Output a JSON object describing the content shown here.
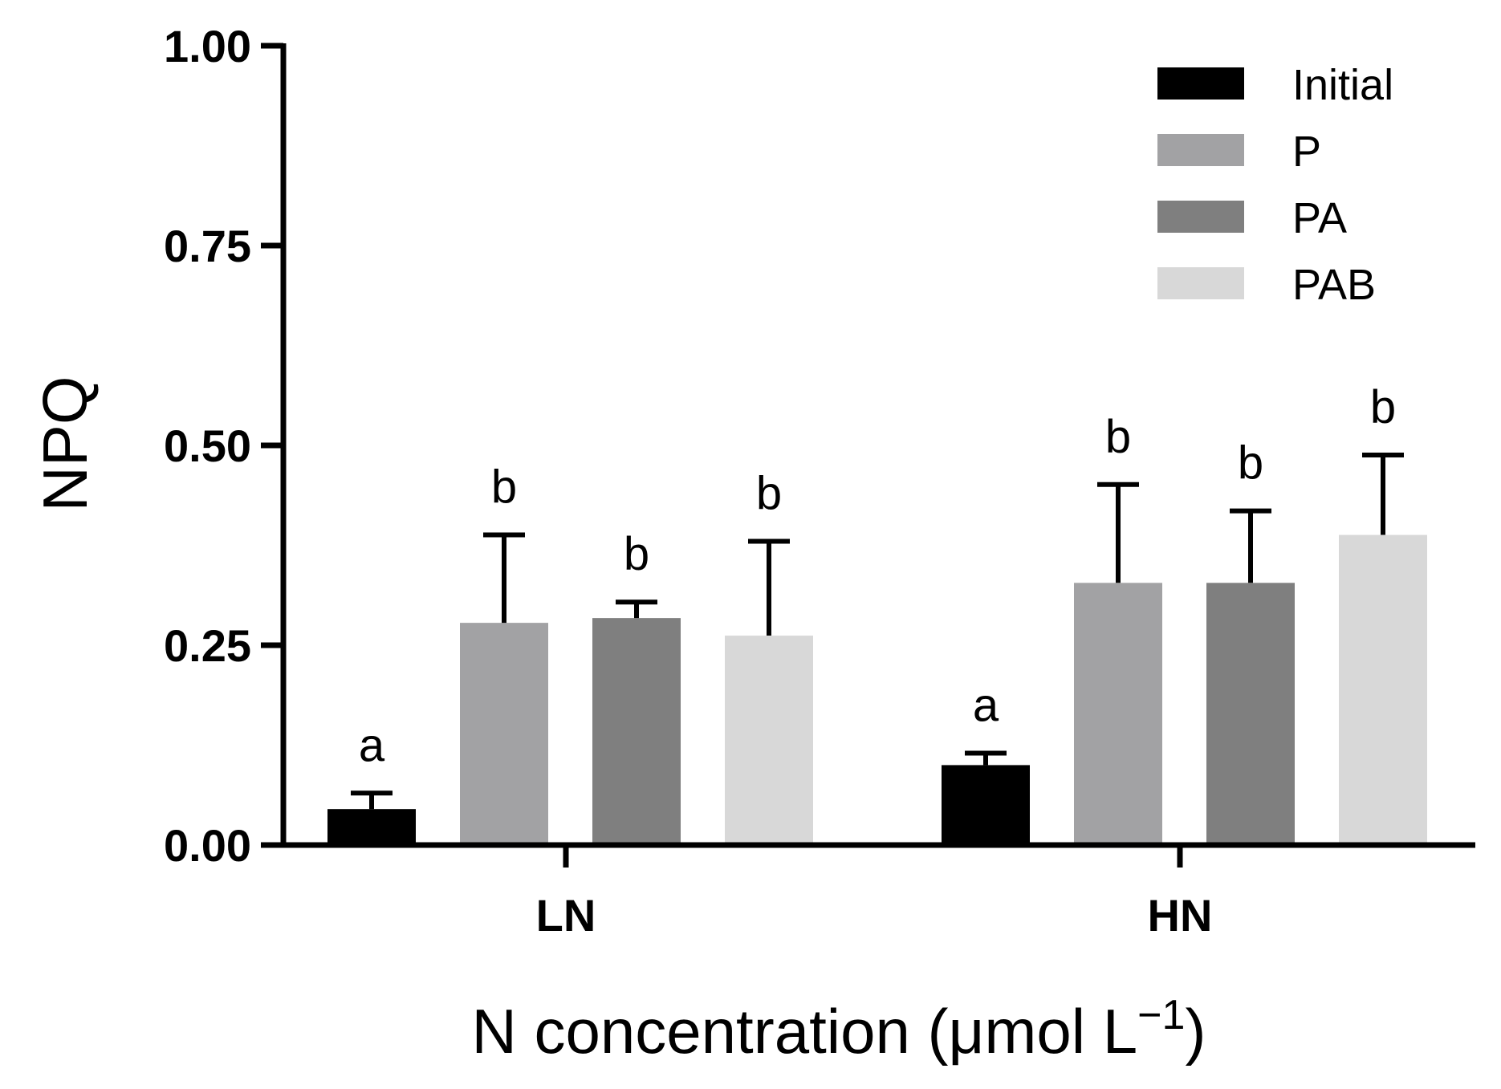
{
  "chart_data": {
    "type": "bar",
    "categories": [
      "LN",
      "HN"
    ],
    "series": [
      {
        "name": "Initial",
        "color": "#000000",
        "values": [
          0.045,
          0.1
        ],
        "errors": [
          0.02,
          0.015
        ],
        "significance": [
          "a",
          "a"
        ]
      },
      {
        "name": "P",
        "color": "#a2a2a4",
        "values": [
          0.278,
          0.328
        ],
        "errors": [
          0.11,
          0.123
        ],
        "significance": [
          "b",
          "b"
        ]
      },
      {
        "name": "PA",
        "color": "#7f7f7f",
        "values": [
          0.284,
          0.328
        ],
        "errors": [
          0.02,
          0.09
        ],
        "significance": [
          "b",
          "b"
        ]
      },
      {
        "name": "PAB",
        "color": "#d8d8d8",
        "values": [
          0.262,
          0.388
        ],
        "errors": [
          0.118,
          0.1
        ],
        "significance": [
          "b",
          "b"
        ]
      }
    ],
    "ylabel": "NPQ",
    "xlabel_main": "N concentration (μmol L",
    "xlabel_sup": "−1",
    "xlabel_close": ")",
    "ylim": [
      0,
      1.0
    ],
    "yticks": [
      0.0,
      0.25,
      0.5,
      0.75,
      1.0
    ],
    "ytick_labels": [
      "0.00",
      "0.25",
      "0.50",
      "0.75",
      "1.00"
    ],
    "grid": false,
    "legend_position": "top-right"
  }
}
